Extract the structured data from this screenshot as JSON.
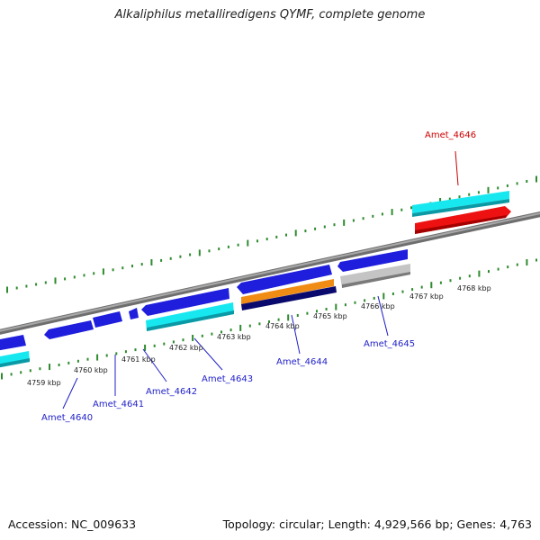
{
  "title": "Alkaliphilus metalliredigens QYMF, complete genome",
  "footer": {
    "accession": "Accession: NC_009633",
    "summary": "Topology: circular; Length: 4,929,566 bp; Genes: 4,763"
  },
  "ruler": {
    "unit": "kbp",
    "labels": [
      "4759 kbp",
      "4760 kbp",
      "4761 kbp",
      "4762 kbp",
      "4763 kbp",
      "4764 kbp",
      "4765 kbp",
      "4766 kbp",
      "4767 kbp",
      "4768 kbp"
    ]
  },
  "genes": {
    "Amet_4640": "Amet_4640",
    "Amet_4641": "Amet_4641",
    "Amet_4642": "Amet_4642",
    "Amet_4643": "Amet_4643",
    "Amet_4644": "Amet_4644",
    "Amet_4645": "Amet_4645",
    "Amet_4646": "Amet_4646"
  },
  "colors": {
    "background": "#ffffff",
    "backbone": "#8a8a8a",
    "tick": "#2f8a2f",
    "cds_blue": "#1e1edc",
    "cds_cyan": "#17e8f0",
    "cds_orange": "#f08c14",
    "cds_navy": "#0a0a6e",
    "cds_gray": "#c4c4c4",
    "cds_red": "#ee1111",
    "label_blue": "#1f1fc8",
    "label_red": "#cc0000"
  }
}
